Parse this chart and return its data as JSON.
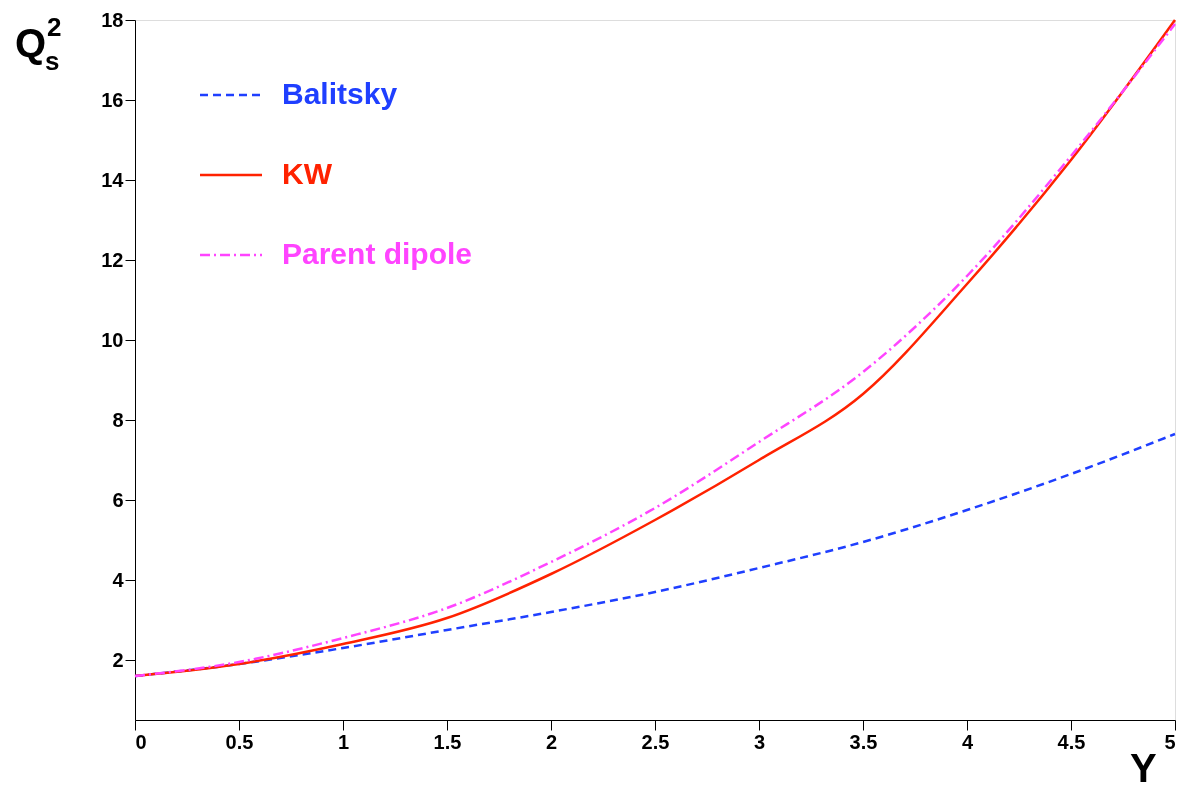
{
  "chart_data": {
    "type": "line",
    "xlabel": "Y",
    "ylabel": "Q$_{s}$$^{2}$",
    "x": [
      0,
      0.5,
      1,
      1.5,
      2,
      2.5,
      3,
      3.5,
      4,
      4.5,
      5
    ],
    "series": [
      {
        "name": "Balitsky",
        "color": "#1f3fff",
        "line_style": "dashed",
        "values": [
          1.6,
          1.9,
          2.3,
          2.75,
          3.2,
          3.7,
          4.3,
          4.95,
          5.75,
          6.65,
          7.65
        ]
      },
      {
        "name": "KW",
        "color": "#ff2200",
        "line_style": "solid",
        "values": [
          1.6,
          1.9,
          2.4,
          3.05,
          4.15,
          5.5,
          7.0,
          8.65,
          11.4,
          14.5,
          18.0
        ]
      },
      {
        "name": "Parent dipole",
        "color": "#ff44ff",
        "line_style": "dotted",
        "values": [
          1.6,
          1.95,
          2.55,
          3.3,
          4.45,
          5.8,
          7.45,
          9.2,
          11.6,
          14.6,
          17.9
        ]
      }
    ],
    "xlim": [
      0,
      5
    ],
    "ylim": [
      0.5,
      18
    ],
    "xticks": [
      0,
      0.5,
      1,
      1.5,
      2,
      2.5,
      3,
      3.5,
      4,
      4.5,
      5
    ],
    "yticks": [
      2,
      4,
      6,
      8,
      10,
      12,
      14,
      16,
      18
    ],
    "grid": false,
    "legend": "top left",
    "marker": "none"
  }
}
